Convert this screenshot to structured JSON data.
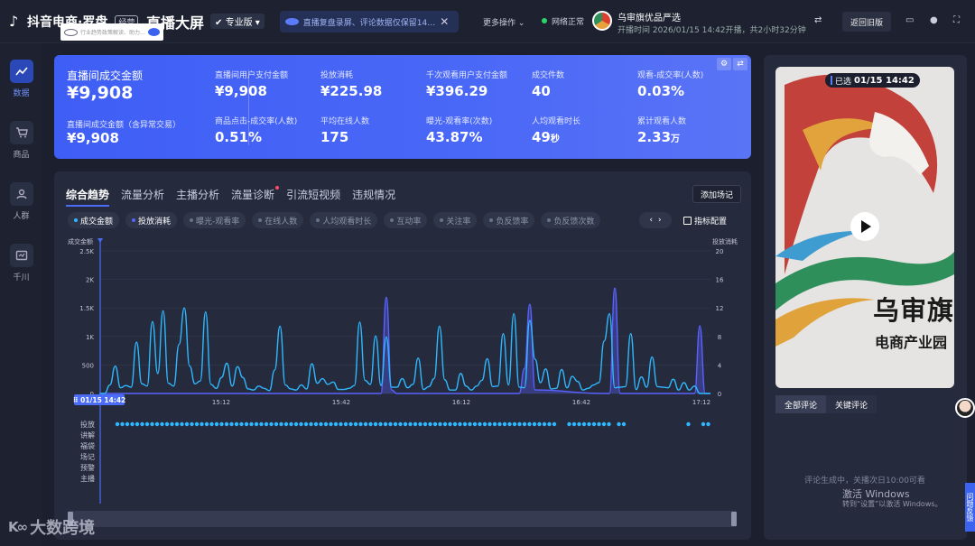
{
  "topbar": {
    "logo_text": "抖音电商·罗盘",
    "logo_tag": "经营",
    "industry_search_placeholder": "行业趋势政策解读、助力…",
    "page_title": "直播大屏",
    "edition": "专业版",
    "notice": "直播复盘录屏、评论数据仅保留14…",
    "more_ops": "更多操作",
    "network": "网络正常",
    "shop_name": "乌审旗优品严选",
    "live_time": "开播时间 2026/01/15 14:42开播，共2小时32分钟",
    "back_old": "返回旧版"
  },
  "sidebar": {
    "items": [
      {
        "label": "数据"
      },
      {
        "label": "商品"
      },
      {
        "label": "人群"
      },
      {
        "label": "千川"
      }
    ]
  },
  "kpi": {
    "main_label": "直播间成交金额",
    "main_value": "¥9,908",
    "sub_label": "直播间成交金额（含异常交易）",
    "sub_value": "¥9,908",
    "metrics": [
      {
        "label": "直播间用户支付金额",
        "value": "¥9,908"
      },
      {
        "label": "投放消耗",
        "value": "¥225.98"
      },
      {
        "label": "千次观看用户支付金额",
        "value": "¥396.29"
      },
      {
        "label": "成交件数",
        "value": "40"
      },
      {
        "label": "观看-成交率(人数)",
        "value": "0.03%"
      },
      {
        "label": "商品点击-成交率(人数)",
        "value": "0.51%"
      },
      {
        "label": "平均在线人数",
        "value": "175"
      },
      {
        "label": "曝光-观看率(次数)",
        "value": "43.87%"
      },
      {
        "label": "人均观看时长",
        "value": "49",
        "unit": "秒"
      },
      {
        "label": "累计观看人数",
        "value": "2.33",
        "unit": "万"
      }
    ]
  },
  "trend": {
    "tabs": [
      "综合趋势",
      "流量分析",
      "主播分析",
      "流量诊断",
      "引流短视频",
      "违规情况"
    ],
    "add_record": "添加场记",
    "metrics": [
      "成交金额",
      "投放消耗",
      "曝光-观看率",
      "在线人数",
      "人均观看时长",
      "互动率",
      "关注率",
      "负反馈率",
      "负反馈次数"
    ],
    "metric_config": "指标配置",
    "timeline_rows": [
      "投放",
      "讲解",
      "福袋",
      "场记",
      "预警",
      "主播"
    ]
  },
  "chart_data": {
    "type": "line",
    "left_axis_label": "成交金额",
    "right_axis_label": "投放消耗",
    "ylim_left": [
      0,
      2500
    ],
    "ylim_right": [
      0,
      20
    ],
    "left_ticks": [
      "0",
      "500",
      "1K",
      "1.5K",
      "2K",
      "2.5K"
    ],
    "right_ticks": [
      "0",
      "4",
      "8",
      "12",
      "16",
      "20"
    ],
    "x_ticks": [
      "15:12",
      "15:42",
      "16:12",
      "16:42",
      "17:12"
    ],
    "cursor_label": "01/15 14:42",
    "series": [
      {
        "name": "成交金额",
        "color": "#2fb8ff",
        "points": [
          [
            0,
            0
          ],
          [
            1,
            0
          ],
          [
            2,
            150
          ],
          [
            3,
            480
          ],
          [
            4,
            100
          ],
          [
            5,
            140
          ],
          [
            6,
            110
          ],
          [
            7,
            900
          ],
          [
            8,
            170
          ],
          [
            9,
            130
          ],
          [
            10,
            1260
          ],
          [
            11,
            350
          ],
          [
            12,
            1450
          ],
          [
            13,
            180
          ],
          [
            14,
            130
          ],
          [
            15,
            860
          ],
          [
            16,
            1500
          ],
          [
            17,
            480
          ],
          [
            18,
            170
          ],
          [
            19,
            220
          ],
          [
            20,
            1430
          ],
          [
            21,
            160
          ],
          [
            22,
            90
          ],
          [
            23,
            280
          ],
          [
            24,
            530
          ],
          [
            25,
            130
          ],
          [
            26,
            470
          ],
          [
            27,
            280
          ],
          [
            28,
            80
          ],
          [
            29,
            60
          ],
          [
            30,
            130
          ],
          [
            31,
            90
          ],
          [
            32,
            50
          ],
          [
            33,
            410
          ],
          [
            34,
            1180
          ],
          [
            35,
            150
          ],
          [
            36,
            80
          ],
          [
            37,
            60
          ],
          [
            38,
            150
          ],
          [
            39,
            80
          ],
          [
            40,
            520
          ],
          [
            41,
            180
          ],
          [
            42,
            260
          ],
          [
            43,
            160
          ],
          [
            44,
            200
          ],
          [
            45,
            70
          ],
          [
            46,
            70
          ],
          [
            47,
            90
          ],
          [
            48,
            140
          ],
          [
            49,
            1250
          ],
          [
            50,
            230
          ],
          [
            51,
            160
          ],
          [
            52,
            1010
          ],
          [
            53,
            140
          ],
          [
            54,
            990
          ],
          [
            55,
            110
          ],
          [
            56,
            110
          ],
          [
            57,
            260
          ],
          [
            58,
            100
          ],
          [
            59,
            160
          ],
          [
            60,
            620
          ],
          [
            61,
            70
          ],
          [
            62,
            120
          ],
          [
            63,
            260
          ],
          [
            64,
            1180
          ],
          [
            65,
            240
          ],
          [
            66,
            60
          ],
          [
            67,
            60
          ],
          [
            68,
            350
          ],
          [
            69,
            130
          ],
          [
            70,
            60
          ],
          [
            71,
            130
          ],
          [
            72,
            230
          ],
          [
            73,
            610
          ],
          [
            74,
            120
          ],
          [
            75,
            130
          ],
          [
            76,
            1050
          ],
          [
            77,
            150
          ],
          [
            78,
            1400
          ],
          [
            79,
            110
          ],
          [
            80,
            100
          ],
          [
            81,
            1280
          ],
          [
            82,
            600
          ],
          [
            83,
            190
          ],
          [
            84,
            430
          ],
          [
            85,
            80
          ],
          [
            86,
            90
          ],
          [
            87,
            420
          ],
          [
            88,
            100
          ],
          [
            89,
            300
          ],
          [
            90,
            210
          ],
          [
            91,
            60
          ],
          [
            92,
            90
          ],
          [
            93,
            150
          ],
          [
            94,
            190
          ],
          [
            95,
            920
          ],
          [
            96,
            1400
          ],
          [
            97,
            100
          ],
          [
            98,
            110
          ],
          [
            99,
            120
          ],
          [
            100,
            1050
          ],
          [
            101,
            70
          ],
          [
            102,
            290
          ],
          [
            103,
            110
          ],
          [
            104,
            640
          ],
          [
            105,
            120
          ],
          [
            106,
            110
          ],
          [
            107,
            100
          ],
          [
            108,
            250
          ],
          [
            109,
            60
          ],
          [
            110,
            190
          ],
          [
            111,
            60
          ],
          [
            112,
            130
          ],
          [
            113,
            0
          ],
          [
            114,
            0
          ],
          [
            115,
            0
          ]
        ]
      },
      {
        "name": "投放消耗",
        "color": "#5a62ff",
        "points": [
          [
            0,
            0
          ],
          [
            28,
            0
          ],
          [
            52,
            0
          ],
          [
            53,
            0
          ],
          [
            54,
            13.5
          ],
          [
            55,
            0.5
          ],
          [
            56,
            0
          ],
          [
            79,
            0
          ],
          [
            80,
            3.5
          ],
          [
            81,
            12.5
          ],
          [
            82,
            0.5
          ],
          [
            95,
            0
          ],
          [
            96,
            0
          ],
          [
            97,
            14.8
          ],
          [
            98,
            0
          ],
          [
            111,
            0
          ],
          [
            112,
            0
          ],
          [
            113,
            9.5
          ],
          [
            114,
            0
          ],
          [
            115,
            0
          ]
        ]
      }
    ]
  },
  "video": {
    "status": "已选",
    "time": "01/15 14:42",
    "logo_line1": "乌审旗",
    "logo_line2": "电商产业园"
  },
  "comments": {
    "tabs": [
      "全部评论",
      "关键评论"
    ],
    "note": "评论生成中，关播次日10:00可看"
  },
  "windows_activate": {
    "line1": "激活 Windows",
    "line2": "转到“设置”以激活 Windows。"
  },
  "feedback": "问题反馈",
  "watermark": "大数跨境"
}
